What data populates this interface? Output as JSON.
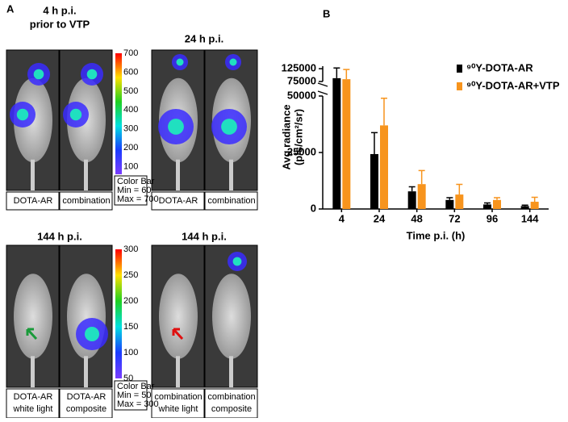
{
  "panel_a": {
    "label": "A",
    "groups": [
      {
        "title": [
          "4 h p.i.",
          "prior to VTP"
        ],
        "captions": [
          [
            "DOTA-AR"
          ],
          [
            "combination"
          ]
        ]
      },
      {
        "title": [
          "24 h p.i."
        ],
        "captions": [
          [
            "DOTA-AR"
          ],
          [
            "combination"
          ]
        ]
      },
      {
        "title": [
          "144 h p.i."
        ],
        "captions": [
          [
            "DOTA-AR",
            "white light"
          ],
          [
            "DOTA-AR",
            "composite"
          ]
        ]
      },
      {
        "title": [
          "144 h p.i."
        ],
        "captions": [
          [
            "combination",
            "white light"
          ],
          [
            "combination",
            "composite"
          ]
        ]
      }
    ],
    "colorbars": [
      {
        "ticks": [
          700,
          600,
          500,
          400,
          300,
          200,
          100
        ],
        "range": [
          60,
          700
        ],
        "legend": [
          "Color Bar",
          "Min = 60",
          "Max = 700"
        ]
      },
      {
        "ticks": [
          300,
          250,
          200,
          150,
          100,
          50
        ],
        "range": [
          50,
          300
        ],
        "legend": [
          "Color Bar",
          "Min = 50",
          "Max = 300"
        ]
      }
    ]
  },
  "chart_data": {
    "type": "bar",
    "panel_label": "B",
    "x_label": "Time p.i. (h)",
    "y_label": [
      "Avg radiance",
      "(p/s/cm²/sr)"
    ],
    "categories": [
      "4",
      "24",
      "48",
      "72",
      "96",
      "144"
    ],
    "series": [
      {
        "name": "⁹⁰Y-DOTA-AR",
        "color": "#000000",
        "values": [
          88000,
          24300,
          7800,
          4000,
          2000,
          1300
        ],
        "errors": [
          40000,
          9500,
          2000,
          1000,
          700,
          400
        ]
      },
      {
        "name": "⁹⁰Y-DOTA-AR+VTP",
        "color": "#f7941d",
        "values": [
          84000,
          37000,
          11000,
          6400,
          4000,
          3200
        ],
        "errors": [
          38000,
          12000,
          6000,
          4500,
          1000,
          2000
        ]
      }
    ],
    "ylim": [
      0,
      135000
    ],
    "ybreak": [
      50000,
      75000
    ],
    "yticks": [
      {
        "value": 0,
        "label": "0"
      },
      {
        "value": 25000,
        "label": "25000"
      },
      {
        "value": 50000,
        "label": "50000"
      },
      {
        "value": 75000,
        "label": "75000"
      },
      {
        "value": 125000,
        "label": "125000"
      }
    ],
    "legend": "top-right"
  }
}
